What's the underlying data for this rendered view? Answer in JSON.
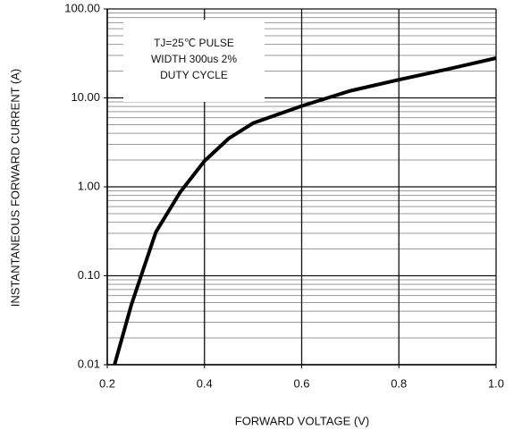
{
  "chart_data": {
    "type": "line",
    "x_label": "FORWARD VOLTAGE (V)",
    "y_label": "INSTANTANEOUS FORWARD CURRENT (A)",
    "annotation": [
      "TJ=25℃ PULSE",
      "WIDTH 300us 2%",
      "DUTY CYCLE"
    ],
    "x": [
      0.215,
      0.25,
      0.3,
      0.35,
      0.4,
      0.45,
      0.5,
      0.6,
      0.7,
      0.8,
      0.9,
      1.0
    ],
    "series": [
      {
        "color": "#000000",
        "values": [
          0.01,
          0.048,
          0.31,
          0.87,
          1.95,
          3.5,
          5.2,
          8.1,
          12,
          16,
          21,
          28
        ]
      }
    ],
    "xlim": [
      0.2,
      1.0
    ],
    "xticks": [
      0.2,
      0.4,
      0.6,
      0.8,
      {
        "value": 1,
        "label": "1.0"
      }
    ],
    "ylim": [
      0.01,
      100
    ],
    "yticks": [
      {
        "value": 0.01,
        "label": "0.01"
      },
      {
        "value": 0.1,
        "label": "0.10"
      },
      {
        "value": 1,
        "label": "1.00"
      },
      {
        "value": 10,
        "label": "10.00"
      },
      {
        "value": 100,
        "label": "100.00"
      }
    ],
    "log_y": true,
    "grid": true,
    "minor_grid": true
  }
}
